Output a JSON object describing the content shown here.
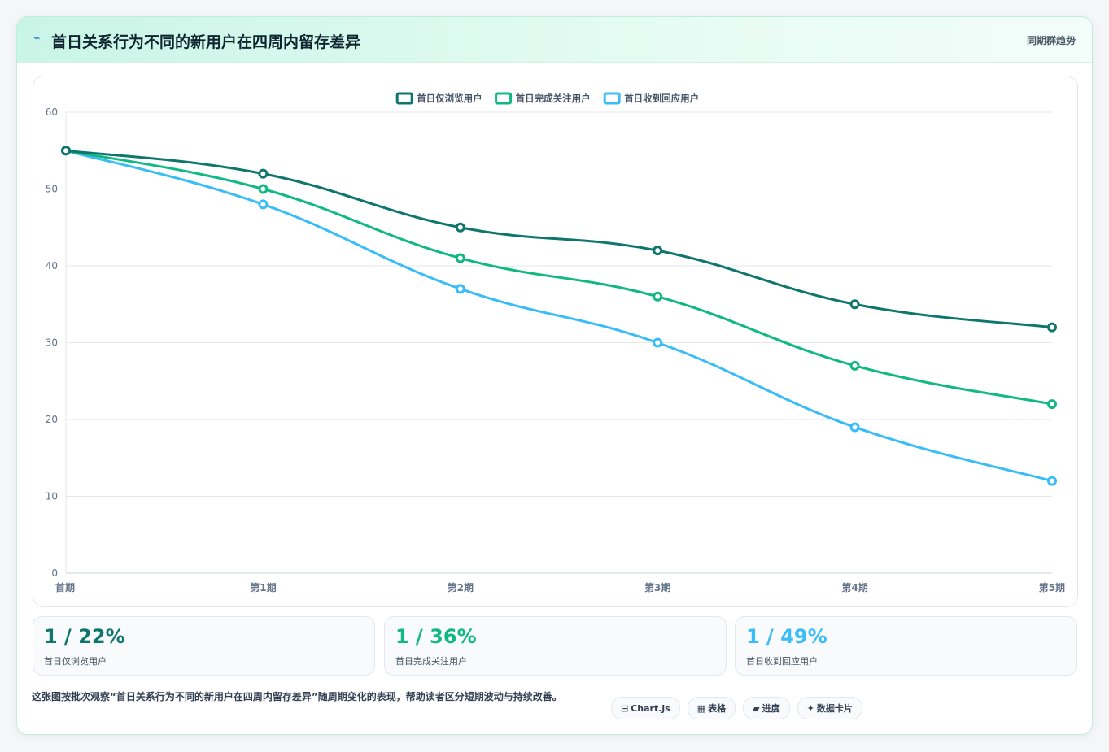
{
  "header": {
    "icon": "trend-icon",
    "title": "首日关系行为不同的新用户在四周内留存差异",
    "subtitle": "同期群趋势"
  },
  "chart_data": {
    "type": "line",
    "categories": [
      "首期",
      "第1期",
      "第2期",
      "第3期",
      "第4期",
      "第5期"
    ],
    "series": [
      {
        "name": "首日仅浏览用户",
        "values": [
          55,
          52,
          45,
          42,
          35,
          32
        ],
        "color": "#0f766e"
      },
      {
        "name": "首日完成关注用户",
        "values": [
          55,
          50,
          41,
          36,
          27,
          22
        ],
        "color": "#10b981"
      },
      {
        "name": "首日收到回应用户",
        "values": [
          55,
          48,
          37,
          30,
          19,
          12
        ],
        "color": "#38bdf8"
      }
    ],
    "ylim": [
      0,
      60
    ],
    "yticks": [
      0,
      10,
      20,
      30,
      40,
      50,
      60
    ],
    "grid": true,
    "legend": "top-center"
  },
  "stats": [
    {
      "value": "1 / 22%",
      "label": "首日仅浏览用户",
      "color": "#0f766e"
    },
    {
      "value": "1 / 36%",
      "label": "首日完成关注用户",
      "color": "#10b981"
    },
    {
      "value": "1 / 49%",
      "label": "首日收到回应用户",
      "color": "#38bdf8"
    }
  ],
  "description": "这张图按批次观察“首日关系行为不同的新用户在四周内留存差异”随周期变化的表现，帮助读者区分短期波动与持续改善。",
  "tags": [
    {
      "icon": "chart-icon",
      "label": "Chart.js"
    },
    {
      "icon": "table-icon",
      "label": "表格"
    },
    {
      "icon": "progress-icon",
      "label": "进度"
    },
    {
      "icon": "sparkle-icon",
      "label": "数据卡片"
    }
  ]
}
